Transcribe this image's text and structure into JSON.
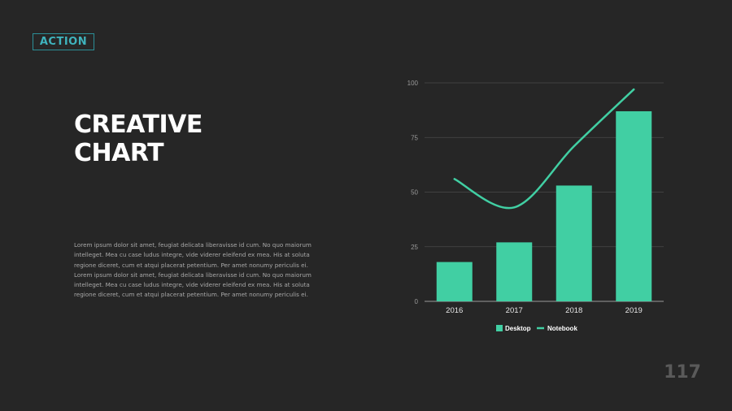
{
  "logo": {
    "text": "ACTION"
  },
  "slide": {
    "title_line1": "CREATIVE",
    "title_line2": "CHART",
    "body": "Lorem ipsum dolor sit amet, feugiat delicata liberavisse id cum. No quo maiorum intelleget. Mea cu case ludus integre, vide viderer eleifend ex mea. His at soluta regione diceret, cum et atqui placerat petentium. Per amet nonumy periculis ei. Lorem ipsum dolor sit amet, feugiat delicata liberavisse id cum. No quo maiorum intelleget. Mea cu case ludus integre, vide viderer eleifend ex mea. His at soluta regione diceret, cum et atqui placerat petentium. Per amet nonumy periculis ei.",
    "page_number": "117"
  },
  "colors": {
    "accent": "#41cfa3",
    "background": "#262626",
    "logo": "#3fb3bd"
  },
  "chart_data": {
    "type": "bar",
    "categories": [
      "2016",
      "2017",
      "2018",
      "2019"
    ],
    "series": [
      {
        "name": "Desktop",
        "type": "bar",
        "values": [
          18,
          27,
          53,
          87
        ]
      },
      {
        "name": "Notebook",
        "type": "line",
        "values": [
          56,
          43,
          71,
          97
        ]
      }
    ],
    "ylim": [
      0,
      100
    ],
    "yticks": [
      "0",
      "25",
      "50",
      "75",
      "100"
    ],
    "grid": true,
    "legend": "bottom"
  }
}
